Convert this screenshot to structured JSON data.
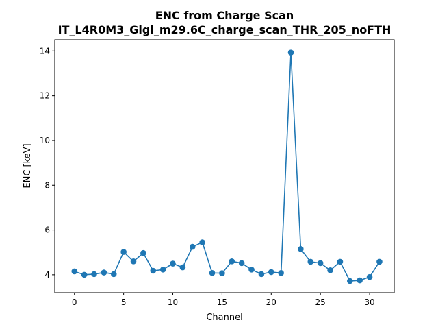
{
  "chart_data": {
    "type": "line",
    "title": "ENC from Charge Scan",
    "subtitle": "IT_L4R0M3_Gigi_m29.6C_charge_scan_THR_205_noFTH",
    "xlabel": "Channel",
    "ylabel": "ENC [keV]",
    "xlim": [
      -2,
      32.5
    ],
    "ylim": [
      3.2,
      14.5
    ],
    "xticks": [
      0,
      5,
      10,
      15,
      20,
      25,
      30
    ],
    "yticks": [
      4,
      6,
      8,
      10,
      12,
      14
    ],
    "grid": false,
    "color": "#1f77b4",
    "x": [
      0,
      1,
      2,
      3,
      4,
      5,
      6,
      7,
      8,
      9,
      10,
      11,
      12,
      13,
      14,
      15,
      16,
      17,
      18,
      19,
      20,
      21,
      22,
      23,
      24,
      25,
      26,
      27,
      28,
      29,
      30,
      31
    ],
    "y": [
      4.15,
      4.0,
      4.03,
      4.1,
      4.03,
      5.02,
      4.6,
      4.97,
      4.18,
      4.23,
      4.5,
      4.33,
      5.25,
      5.45,
      4.08,
      4.07,
      4.6,
      4.52,
      4.23,
      4.03,
      4.12,
      4.08,
      13.93,
      5.15,
      4.58,
      4.52,
      4.2,
      4.58,
      3.72,
      3.75,
      3.9,
      4.58
    ]
  }
}
